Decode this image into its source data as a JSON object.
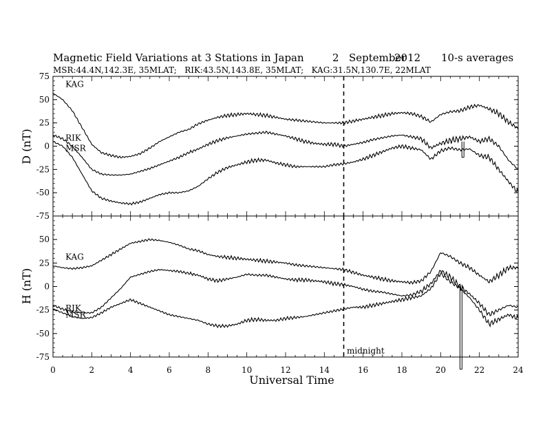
{
  "header": {
    "title": "Magnetic Field Variations at 3 Stations in Japan",
    "day": "2",
    "month": "September",
    "year": "2012",
    "averaging": "10-s averages",
    "stations_line": "MSR:44.4N,142.3E, 35MLAT;   RIK:43.5N,143.8E, 35MLAT;   KAG:31.5N,130.7E, 22MLAT"
  },
  "chart_data": [
    {
      "type": "line",
      "ylabel": "D (nT)",
      "xlabel": "",
      "xlim": [
        0,
        24
      ],
      "ylim": [
        -75,
        75
      ],
      "yticks": [
        -75,
        -50,
        -25,
        0,
        25,
        50,
        75
      ],
      "xticks": [
        0,
        2,
        4,
        6,
        8,
        10,
        12,
        14,
        16,
        18,
        20,
        22,
        24
      ],
      "grid": false,
      "series": [
        {
          "name": "KAG",
          "x": [
            0,
            0.5,
            1,
            1.5,
            2,
            2.5,
            3,
            3.5,
            4,
            4.5,
            5,
            5.5,
            6,
            6.5,
            7,
            7.5,
            8,
            8.5,
            9,
            9.5,
            10,
            10.5,
            11,
            11.5,
            12,
            12.5,
            13,
            13.5,
            14,
            14.5,
            15,
            15.5,
            16,
            16.5,
            17,
            17.5,
            18,
            18.5,
            19,
            19.5,
            20,
            20.5,
            21,
            21.5,
            22,
            22.5,
            23,
            23.5,
            24
          ],
          "values": [
            57,
            50,
            38,
            20,
            2,
            -7,
            -10,
            -12,
            -11,
            -8,
            -2,
            5,
            10,
            15,
            18,
            24,
            28,
            31,
            33,
            34,
            35,
            34,
            33,
            31,
            29,
            28,
            27,
            26,
            25,
            25,
            25,
            27,
            29,
            31,
            33,
            35,
            36,
            35,
            32,
            26,
            34,
            37,
            38,
            42,
            44,
            40,
            35,
            26,
            19
          ]
        },
        {
          "name": "RIK",
          "x": [
            0,
            0.5,
            1,
            1.5,
            2,
            2.5,
            3,
            3.5,
            4,
            4.5,
            5,
            5.5,
            6,
            6.5,
            7,
            7.5,
            8,
            8.5,
            9,
            9.5,
            10,
            10.5,
            11,
            11.5,
            12,
            12.5,
            13,
            13.5,
            14,
            14.5,
            15,
            15.5,
            16,
            16.5,
            17,
            17.5,
            18,
            18.5,
            19,
            19.5,
            20,
            20.5,
            21,
            21.5,
            22,
            22.5,
            23,
            23.5,
            24
          ],
          "values": [
            12,
            8,
            0,
            -12,
            -25,
            -30,
            -31,
            -31,
            -30,
            -27,
            -24,
            -20,
            -16,
            -12,
            -7,
            -3,
            2,
            6,
            9,
            11,
            13,
            14,
            15,
            13,
            11,
            8,
            5,
            3,
            2,
            2,
            0,
            2,
            4,
            7,
            9,
            11,
            12,
            10,
            8,
            -2,
            3,
            6,
            8,
            10,
            5,
            8,
            0,
            -15,
            -25
          ]
        },
        {
          "name": "MSR",
          "x": [
            0,
            0.5,
            1,
            1.5,
            2,
            2.5,
            3,
            3.5,
            4,
            4.5,
            5,
            5.5,
            6,
            6.5,
            7,
            7.5,
            8,
            8.5,
            9,
            9.5,
            10,
            10.5,
            11,
            11.5,
            12,
            12.5,
            13,
            13.5,
            14,
            14.5,
            15,
            15.5,
            16,
            16.5,
            17,
            17.5,
            18,
            18.5,
            19,
            19.5,
            20,
            20.5,
            21,
            21.5,
            22,
            22.5,
            23,
            23.5,
            24
          ],
          "values": [
            5,
            0,
            -12,
            -30,
            -48,
            -56,
            -59,
            -61,
            -62,
            -60,
            -56,
            -52,
            -50,
            -50,
            -48,
            -43,
            -35,
            -28,
            -23,
            -20,
            -17,
            -15,
            -15,
            -18,
            -20,
            -22,
            -22,
            -22,
            -22,
            -20,
            -19,
            -17,
            -14,
            -10,
            -6,
            -2,
            0,
            -2,
            -4,
            -14,
            -5,
            -2,
            -4,
            -3,
            -10,
            -12,
            -25,
            -38,
            -50
          ]
        }
      ],
      "series_labels_on_plot": [
        "KAG",
        "RIK",
        "MSR"
      ],
      "spikes": [
        {
          "x": 21.15,
          "from": 5,
          "to": -12
        }
      ],
      "markers": [
        {
          "type": "dashed-vline",
          "x": 15
        }
      ]
    },
    {
      "type": "line",
      "ylabel": "H (nT)",
      "xlabel": "Universal Time",
      "xlim": [
        0,
        24
      ],
      "ylim": [
        -75,
        75
      ],
      "yticks": [
        -75,
        -50,
        -25,
        0,
        25,
        50
      ],
      "xticks": [
        0,
        2,
        4,
        6,
        8,
        10,
        12,
        14,
        16,
        18,
        20,
        22,
        24
      ],
      "grid": false,
      "series": [
        {
          "name": "KAG",
          "x": [
            0,
            0.5,
            1,
            1.5,
            2,
            2.5,
            3,
            3.5,
            4,
            4.5,
            5,
            5.5,
            6,
            6.5,
            7,
            7.5,
            8,
            8.5,
            9,
            9.5,
            10,
            10.5,
            11,
            11.5,
            12,
            12.5,
            13,
            13.5,
            14,
            14.5,
            15,
            15.5,
            16,
            16.5,
            17,
            17.5,
            18,
            18.5,
            19,
            19.5,
            20,
            20.5,
            21,
            21.5,
            22,
            22.5,
            23,
            23.5,
            24
          ],
          "values": [
            22,
            20,
            19,
            20,
            22,
            28,
            34,
            40,
            46,
            48,
            50,
            49,
            47,
            44,
            40,
            38,
            34,
            32,
            31,
            30,
            29,
            28,
            27,
            26,
            25,
            23,
            22,
            21,
            20,
            19,
            18,
            15,
            12,
            10,
            8,
            6,
            5,
            4,
            6,
            16,
            36,
            32,
            25,
            20,
            12,
            5,
            12,
            20,
            20
          ]
        },
        {
          "name": "RIK",
          "x": [
            0,
            0.5,
            1,
            1.5,
            2,
            2.5,
            3,
            3.5,
            4,
            4.5,
            5,
            5.5,
            6,
            6.5,
            7,
            7.5,
            8,
            8.5,
            9,
            9.5,
            10,
            10.5,
            11,
            11.5,
            12,
            12.5,
            13,
            13.5,
            14,
            14.5,
            15,
            15.5,
            16,
            16.5,
            17,
            17.5,
            18,
            18.5,
            19,
            19.5,
            20,
            20.5,
            21,
            21.5,
            22,
            22.5,
            23,
            23.5,
            24
          ],
          "values": [
            -20,
            -24,
            -27,
            -28,
            -28,
            -22,
            -12,
            -2,
            10,
            13,
            16,
            18,
            17,
            16,
            14,
            12,
            8,
            6,
            8,
            10,
            13,
            12,
            12,
            10,
            8,
            7,
            7,
            6,
            5,
            3,
            2,
            0,
            -3,
            -5,
            -6,
            -8,
            -10,
            -9,
            -5,
            3,
            17,
            10,
            0,
            -8,
            -18,
            -30,
            -25,
            -20,
            -22
          ]
        },
        {
          "name": "MSR",
          "x": [
            0,
            0.5,
            1,
            1.5,
            2,
            2.5,
            3,
            3.5,
            4,
            4.5,
            5,
            5.5,
            6,
            6.5,
            7,
            7.5,
            8,
            8.5,
            9,
            9.5,
            10,
            10.5,
            11,
            11.5,
            12,
            12.5,
            13,
            13.5,
            14,
            14.5,
            15,
            15.5,
            16,
            16.5,
            17,
            17.5,
            18,
            18.5,
            19,
            19.5,
            20,
            20.5,
            21,
            21.5,
            22,
            22.5,
            23,
            23.5,
            24
          ],
          "values": [
            -24,
            -28,
            -32,
            -34,
            -33,
            -28,
            -22,
            -18,
            -14,
            -18,
            -22,
            -26,
            -30,
            -32,
            -34,
            -36,
            -40,
            -42,
            -42,
            -40,
            -36,
            -35,
            -36,
            -36,
            -34,
            -33,
            -32,
            -30,
            -28,
            -26,
            -24,
            -22,
            -22,
            -20,
            -18,
            -16,
            -14,
            -12,
            -10,
            -2,
            14,
            5,
            -2,
            -12,
            -25,
            -40,
            -35,
            -30,
            -34
          ]
        }
      ],
      "series_labels_on_plot": [
        "KAG",
        "RIK",
        "MSR"
      ],
      "spikes": [
        {
          "x": 21.05,
          "from": 2,
          "to": -88
        }
      ],
      "markers": [
        {
          "type": "dashed-vline",
          "x": 15
        }
      ],
      "annotations": [
        "midnight"
      ]
    }
  ]
}
